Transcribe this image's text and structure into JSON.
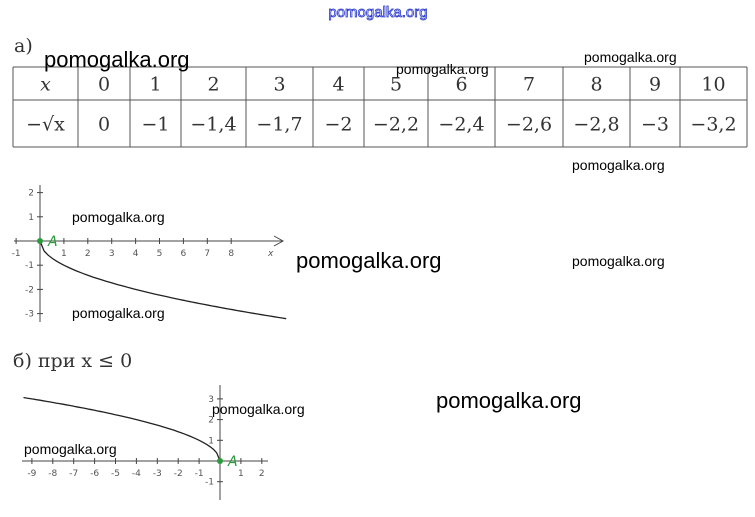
{
  "watermark_top": "pomogalka.org",
  "part_a": {
    "label": "а)",
    "table": {
      "rows": [
        [
          "x",
          "0",
          "1",
          "2",
          "3",
          "4",
          "5",
          "6",
          "7",
          "8",
          "9",
          "10"
        ],
        [
          "−√x",
          "0",
          "−1",
          "−1,4",
          "−1,7",
          "−2",
          "−2,2",
          "−2,4",
          "−2,6",
          "−2,8",
          "−3",
          "−3,2"
        ]
      ]
    },
    "graph": {
      "xticks": [
        -1,
        1,
        2,
        3,
        4,
        5,
        6,
        7,
        8
      ],
      "yticks": [
        2,
        1,
        -1,
        -2,
        -3
      ],
      "x_axis_label": "x",
      "point_label": "A"
    }
  },
  "part_b": {
    "label": "б) при x ≤ 0",
    "graph": {
      "xticks": [
        -9,
        -8,
        -7,
        -6,
        -5,
        -4,
        -3,
        -2,
        -1,
        1,
        2
      ],
      "yticks": [
        3,
        2,
        1,
        -1
      ],
      "point_label": "A"
    }
  },
  "watermarks": [
    "pomogalka.org",
    "pomogalka.org",
    "pomogalka.org",
    "pomogalka.org",
    "pomogalka.org",
    "pomogalka.org",
    "pomogalka.org",
    "pomogalka.org",
    "pomogalka.org",
    "pomogalka.org",
    "pomogalka.org"
  ]
}
